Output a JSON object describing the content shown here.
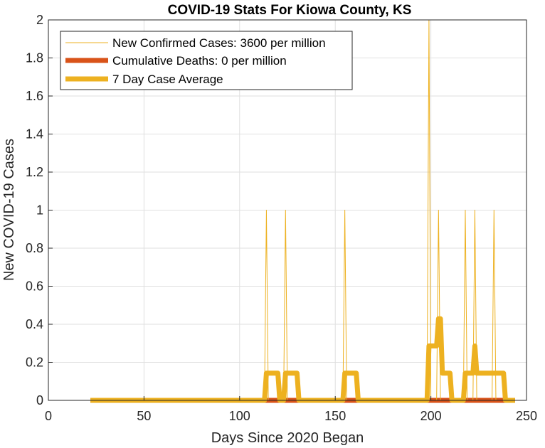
{
  "chart_data": {
    "type": "line",
    "title": "COVID-19 Stats For Kiowa County, KS",
    "xlabel": "Days Since 2020 Began",
    "ylabel": "New COVID-19 Cases",
    "xlim": [
      0,
      250
    ],
    "ylim": [
      0,
      2
    ],
    "xticks": [
      "0",
      "50",
      "100",
      "150",
      "200",
      "250"
    ],
    "yticks": [
      "0",
      "0.2",
      "0.4",
      "0.6",
      "0.8",
      "1",
      "1.2",
      "1.4",
      "1.6",
      "1.8",
      "2"
    ],
    "grid": true,
    "legend_position": "top-left",
    "series": [
      {
        "name": "New Confirmed Cases: 3600 per million",
        "color": "#EDB120",
        "style": "thin",
        "x": [
          22,
          113,
          114,
          115,
          123,
          124,
          125,
          154,
          155,
          156,
          198,
          199,
          200,
          203,
          204,
          205,
          217,
          218,
          219,
          222,
          223,
          224,
          232,
          233,
          234,
          244
        ],
        "y": [
          0,
          0,
          1,
          0,
          0,
          1,
          0,
          0,
          1,
          0,
          0,
          2,
          0,
          0,
          1,
          0,
          0,
          1,
          0,
          0,
          1,
          0,
          0,
          1,
          0,
          0
        ]
      },
      {
        "name": "Cumulative Deaths: 0 per million",
        "color": "#D95319",
        "style": "thick",
        "x": [
          22,
          244
        ],
        "y": [
          0,
          0
        ]
      },
      {
        "name": "7 Day Case Average",
        "color": "#EDB120",
        "style": "thick",
        "x": [
          22,
          113,
          114,
          120,
          121,
          123,
          124,
          130,
          131,
          154,
          155,
          161,
          162,
          198,
          199,
          202,
          203,
          204,
          205,
          206,
          210,
          211,
          217,
          218,
          221,
          222,
          223,
          224,
          228,
          229,
          231,
          232,
          238,
          239,
          244
        ],
        "y": [
          0,
          0,
          0.143,
          0.143,
          0,
          0,
          0.143,
          0.143,
          0,
          0,
          0.143,
          0.143,
          0,
          0,
          0.286,
          0.286,
          0.286,
          0.429,
          0.429,
          0.143,
          0.143,
          0,
          0,
          0.143,
          0.143,
          0.143,
          0.286,
          0.143,
          0.143,
          0.143,
          0.143,
          0.143,
          0.143,
          0,
          0
        ]
      }
    ]
  }
}
